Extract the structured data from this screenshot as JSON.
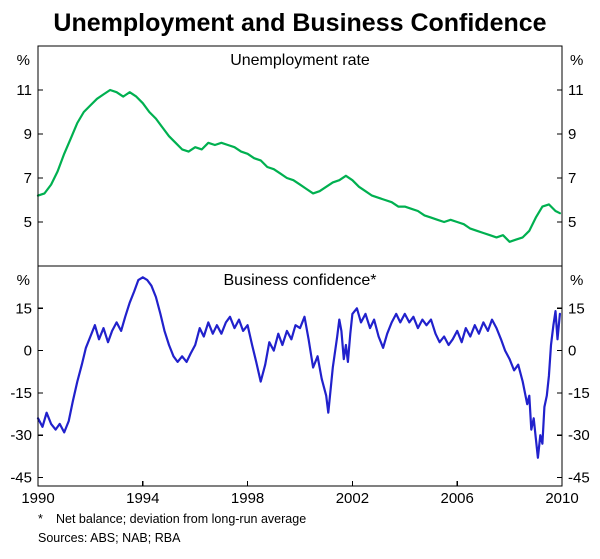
{
  "chart_data": {
    "type": "line",
    "title": "Unemployment and Business Confidence",
    "footnote": {
      "marker": "*",
      "text": "Net balance; deviation from long-run average"
    },
    "sources": "Sources: ABS; NAB; RBA",
    "x_axis": {
      "lim": [
        1990,
        2010
      ],
      "ticks": [
        1990,
        1994,
        1998,
        2002,
        2006,
        2010
      ]
    },
    "grid": "off",
    "panels": [
      {
        "label": "Unemployment rate",
        "unit": "%",
        "ylim": [
          3,
          13
        ],
        "yticks": [
          11,
          9,
          7,
          5
        ],
        "series": {
          "name": "Unemployment rate",
          "color": "#00b050",
          "points": [
            [
              1990.0,
              6.2
            ],
            [
              1990.25,
              6.3
            ],
            [
              1990.5,
              6.7
            ],
            [
              1990.75,
              7.3
            ],
            [
              1991.0,
              8.1
            ],
            [
              1991.25,
              8.8
            ],
            [
              1991.5,
              9.5
            ],
            [
              1991.75,
              10.0
            ],
            [
              1992.0,
              10.3
            ],
            [
              1992.25,
              10.6
            ],
            [
              1992.5,
              10.8
            ],
            [
              1992.75,
              11.0
            ],
            [
              1993.0,
              10.9
            ],
            [
              1993.25,
              10.7
            ],
            [
              1993.5,
              10.9
            ],
            [
              1993.75,
              10.7
            ],
            [
              1994.0,
              10.4
            ],
            [
              1994.25,
              10.0
            ],
            [
              1994.5,
              9.7
            ],
            [
              1994.75,
              9.3
            ],
            [
              1995.0,
              8.9
            ],
            [
              1995.25,
              8.6
            ],
            [
              1995.5,
              8.3
            ],
            [
              1995.75,
              8.2
            ],
            [
              1996.0,
              8.4
            ],
            [
              1996.25,
              8.3
            ],
            [
              1996.5,
              8.6
            ],
            [
              1996.75,
              8.5
            ],
            [
              1997.0,
              8.6
            ],
            [
              1997.25,
              8.5
            ],
            [
              1997.5,
              8.4
            ],
            [
              1997.75,
              8.2
            ],
            [
              1998.0,
              8.1
            ],
            [
              1998.25,
              7.9
            ],
            [
              1998.5,
              7.8
            ],
            [
              1998.75,
              7.5
            ],
            [
              1999.0,
              7.4
            ],
            [
              1999.25,
              7.2
            ],
            [
              1999.5,
              7.0
            ],
            [
              1999.75,
              6.9
            ],
            [
              2000.0,
              6.7
            ],
            [
              2000.25,
              6.5
            ],
            [
              2000.5,
              6.3
            ],
            [
              2000.75,
              6.4
            ],
            [
              2001.0,
              6.6
            ],
            [
              2001.25,
              6.8
            ],
            [
              2001.5,
              6.9
            ],
            [
              2001.75,
              7.1
            ],
            [
              2002.0,
              6.9
            ],
            [
              2002.25,
              6.6
            ],
            [
              2002.5,
              6.4
            ],
            [
              2002.75,
              6.2
            ],
            [
              2003.0,
              6.1
            ],
            [
              2003.25,
              6.0
            ],
            [
              2003.5,
              5.9
            ],
            [
              2003.75,
              5.7
            ],
            [
              2004.0,
              5.7
            ],
            [
              2004.25,
              5.6
            ],
            [
              2004.5,
              5.5
            ],
            [
              2004.75,
              5.3
            ],
            [
              2005.0,
              5.2
            ],
            [
              2005.25,
              5.1
            ],
            [
              2005.5,
              5.0
            ],
            [
              2005.75,
              5.1
            ],
            [
              2006.0,
              5.0
            ],
            [
              2006.25,
              4.9
            ],
            [
              2006.5,
              4.7
            ],
            [
              2006.75,
              4.6
            ],
            [
              2007.0,
              4.5
            ],
            [
              2007.25,
              4.4
            ],
            [
              2007.5,
              4.3
            ],
            [
              2007.75,
              4.4
            ],
            [
              2008.0,
              4.1
            ],
            [
              2008.25,
              4.2
            ],
            [
              2008.5,
              4.3
            ],
            [
              2008.75,
              4.6
            ],
            [
              2009.0,
              5.2
            ],
            [
              2009.25,
              5.7
            ],
            [
              2009.5,
              5.8
            ],
            [
              2009.75,
              5.5
            ],
            [
              2009.92,
              5.4
            ]
          ]
        }
      },
      {
        "label": "Business confidence*",
        "unit": "%",
        "ylim": [
          -48,
          30
        ],
        "yticks": [
          15,
          0,
          -15,
          -30,
          -45
        ],
        "series": {
          "name": "Business confidence",
          "color": "#2121cc",
          "points": [
            [
              1990.0,
              -24
            ],
            [
              1990.17,
              -27
            ],
            [
              1990.33,
              -22
            ],
            [
              1990.5,
              -26
            ],
            [
              1990.67,
              -28
            ],
            [
              1990.83,
              -26
            ],
            [
              1991.0,
              -29
            ],
            [
              1991.17,
              -25
            ],
            [
              1991.33,
              -18
            ],
            [
              1991.5,
              -11
            ],
            [
              1991.67,
              -5
            ],
            [
              1991.83,
              1
            ],
            [
              1992.0,
              5
            ],
            [
              1992.17,
              9
            ],
            [
              1992.33,
              4
            ],
            [
              1992.5,
              8
            ],
            [
              1992.67,
              3
            ],
            [
              1992.83,
              7
            ],
            [
              1993.0,
              10
            ],
            [
              1993.17,
              7
            ],
            [
              1993.33,
              12
            ],
            [
              1993.5,
              17
            ],
            [
              1993.67,
              21
            ],
            [
              1993.83,
              25
            ],
            [
              1994.0,
              26
            ],
            [
              1994.17,
              25
            ],
            [
              1994.33,
              23
            ],
            [
              1994.5,
              19
            ],
            [
              1994.67,
              13
            ],
            [
              1994.83,
              7
            ],
            [
              1995.0,
              2
            ],
            [
              1995.17,
              -2
            ],
            [
              1995.33,
              -4
            ],
            [
              1995.5,
              -2
            ],
            [
              1995.67,
              -4
            ],
            [
              1995.83,
              -1
            ],
            [
              1996.0,
              2
            ],
            [
              1996.17,
              8
            ],
            [
              1996.33,
              5
            ],
            [
              1996.5,
              10
            ],
            [
              1996.67,
              6
            ],
            [
              1996.83,
              9
            ],
            [
              1997.0,
              6
            ],
            [
              1997.17,
              10
            ],
            [
              1997.33,
              12
            ],
            [
              1997.5,
              8
            ],
            [
              1997.67,
              11
            ],
            [
              1997.83,
              7
            ],
            [
              1998.0,
              9
            ],
            [
              1998.17,
              2
            ],
            [
              1998.33,
              -4
            ],
            [
              1998.5,
              -11
            ],
            [
              1998.67,
              -5
            ],
            [
              1998.83,
              3
            ],
            [
              1999.0,
              0
            ],
            [
              1999.17,
              6
            ],
            [
              1999.33,
              2
            ],
            [
              1999.5,
              7
            ],
            [
              1999.67,
              4
            ],
            [
              1999.83,
              9
            ],
            [
              2000.0,
              8
            ],
            [
              2000.17,
              12
            ],
            [
              2000.33,
              4
            ],
            [
              2000.5,
              -6
            ],
            [
              2000.67,
              -2
            ],
            [
              2000.83,
              -10
            ],
            [
              2001.0,
              -16
            ],
            [
              2001.08,
              -22
            ],
            [
              2001.25,
              -6
            ],
            [
              2001.42,
              5
            ],
            [
              2001.5,
              11
            ],
            [
              2001.58,
              7
            ],
            [
              2001.67,
              -3
            ],
            [
              2001.75,
              2
            ],
            [
              2001.83,
              -4
            ],
            [
              2001.92,
              6
            ],
            [
              2002.0,
              13
            ],
            [
              2002.17,
              15
            ],
            [
              2002.33,
              10
            ],
            [
              2002.5,
              13
            ],
            [
              2002.67,
              8
            ],
            [
              2002.83,
              11
            ],
            [
              2003.0,
              5
            ],
            [
              2003.17,
              1
            ],
            [
              2003.33,
              6
            ],
            [
              2003.5,
              10
            ],
            [
              2003.67,
              13
            ],
            [
              2003.83,
              10
            ],
            [
              2004.0,
              13
            ],
            [
              2004.17,
              10
            ],
            [
              2004.33,
              12
            ],
            [
              2004.5,
              8
            ],
            [
              2004.67,
              11
            ],
            [
              2004.83,
              9
            ],
            [
              2005.0,
              11
            ],
            [
              2005.17,
              6
            ],
            [
              2005.33,
              3
            ],
            [
              2005.5,
              5
            ],
            [
              2005.67,
              2
            ],
            [
              2005.83,
              4
            ],
            [
              2006.0,
              7
            ],
            [
              2006.17,
              3
            ],
            [
              2006.33,
              8
            ],
            [
              2006.5,
              5
            ],
            [
              2006.67,
              9
            ],
            [
              2006.83,
              6
            ],
            [
              2007.0,
              10
            ],
            [
              2007.17,
              7
            ],
            [
              2007.33,
              11
            ],
            [
              2007.5,
              8
            ],
            [
              2007.67,
              4
            ],
            [
              2007.83,
              0
            ],
            [
              2008.0,
              -3
            ],
            [
              2008.17,
              -7
            ],
            [
              2008.33,
              -5
            ],
            [
              2008.5,
              -11
            ],
            [
              2008.67,
              -19
            ],
            [
              2008.75,
              -16
            ],
            [
              2008.83,
              -28
            ],
            [
              2008.92,
              -24
            ],
            [
              2009.0,
              -31
            ],
            [
              2009.08,
              -38
            ],
            [
              2009.17,
              -30
            ],
            [
              2009.25,
              -33
            ],
            [
              2009.33,
              -20
            ],
            [
              2009.42,
              -16
            ],
            [
              2009.5,
              -9
            ],
            [
              2009.58,
              2
            ],
            [
              2009.67,
              9
            ],
            [
              2009.75,
              14
            ],
            [
              2009.83,
              4
            ],
            [
              2009.92,
              13
            ]
          ]
        }
      }
    ]
  }
}
